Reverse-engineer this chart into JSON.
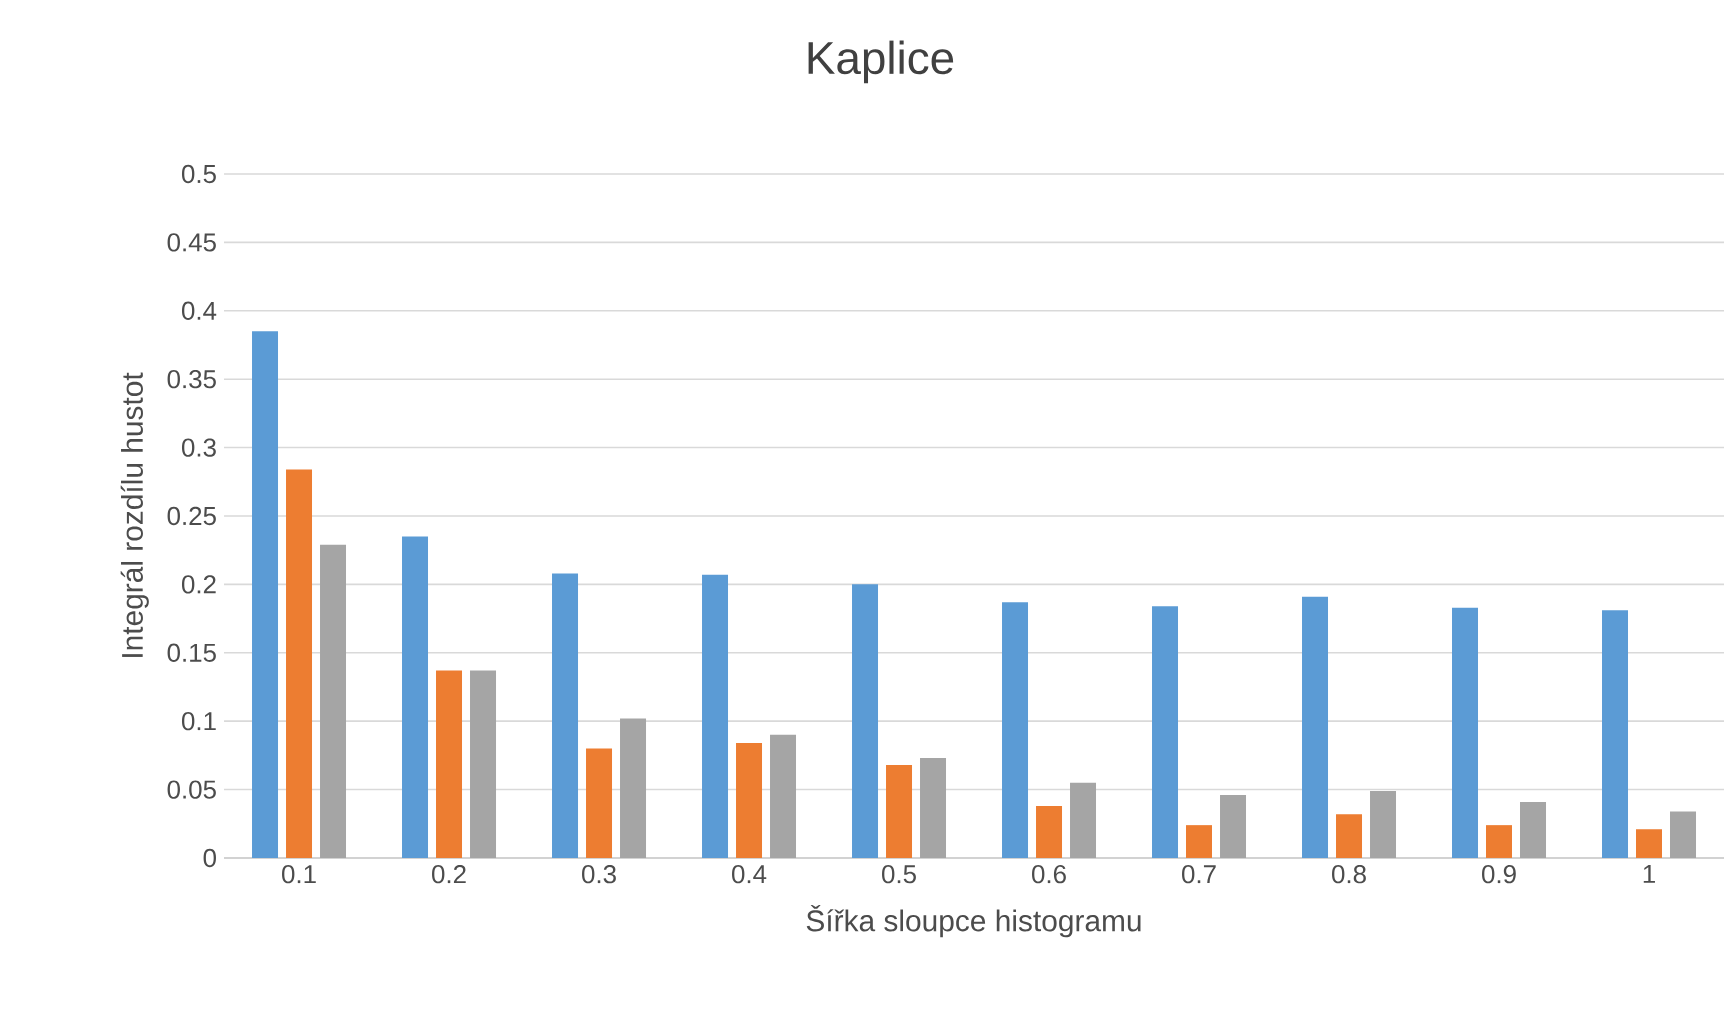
{
  "chart_data": {
    "type": "bar",
    "title": "Kaplice",
    "xlabel": "Šířka sloupce histogramu",
    "ylabel": "Integrál rozdílu hustot",
    "categories": [
      "0.1",
      "0.2",
      "0.3",
      "0.4",
      "0.5",
      "0.6",
      "0.7",
      "0.8",
      "0.9",
      "1"
    ],
    "series": [
      {
        "color": "#5b9bd5",
        "values": [
          0.385,
          0.235,
          0.208,
          0.207,
          0.2,
          0.187,
          0.184,
          0.191,
          0.183,
          0.181
        ]
      },
      {
        "color": "#ed7d31",
        "values": [
          0.284,
          0.137,
          0.08,
          0.084,
          0.068,
          0.038,
          0.024,
          0.032,
          0.024,
          0.021
        ]
      },
      {
        "color": "#a5a5a5",
        "values": [
          0.229,
          0.137,
          0.102,
          0.09,
          0.073,
          0.055,
          0.046,
          0.049,
          0.041,
          0.034
        ]
      }
    ],
    "ylim": [
      0,
      0.5
    ],
    "yticks": [
      0,
      0.05,
      0.1,
      0.15,
      0.2,
      0.25,
      0.3,
      0.35,
      0.4,
      0.45,
      0.5
    ],
    "grid": "y"
  }
}
